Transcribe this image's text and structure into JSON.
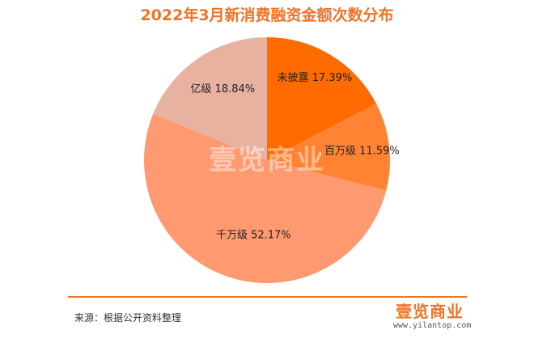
{
  "title": "2022年3月新消费融资金额次数分布",
  "chart_data": {
    "type": "pie",
    "start_angle_deg": 0,
    "direction": "clockwise",
    "slices": [
      {
        "label": "未披露",
        "value": 17.39,
        "text": "17.39%",
        "color": "#ff6b00"
      },
      {
        "label": "百万级",
        "value": 11.59,
        "text": "11.59%",
        "color": "#ff8333"
      },
      {
        "label": "千万级",
        "value": 52.17,
        "text": "52.17%",
        "color": "#ff9a70"
      },
      {
        "label": "亿级",
        "value": 18.84,
        "text": "18.84%",
        "color": "#e8b2a0"
      }
    ]
  },
  "watermark": "壹览商业",
  "footer": {
    "source": "来源：根据公开资料整理",
    "logo_text": "壹览商业",
    "logo_url": "www.yilantop.com"
  },
  "colors": {
    "accent": "#f07328"
  }
}
